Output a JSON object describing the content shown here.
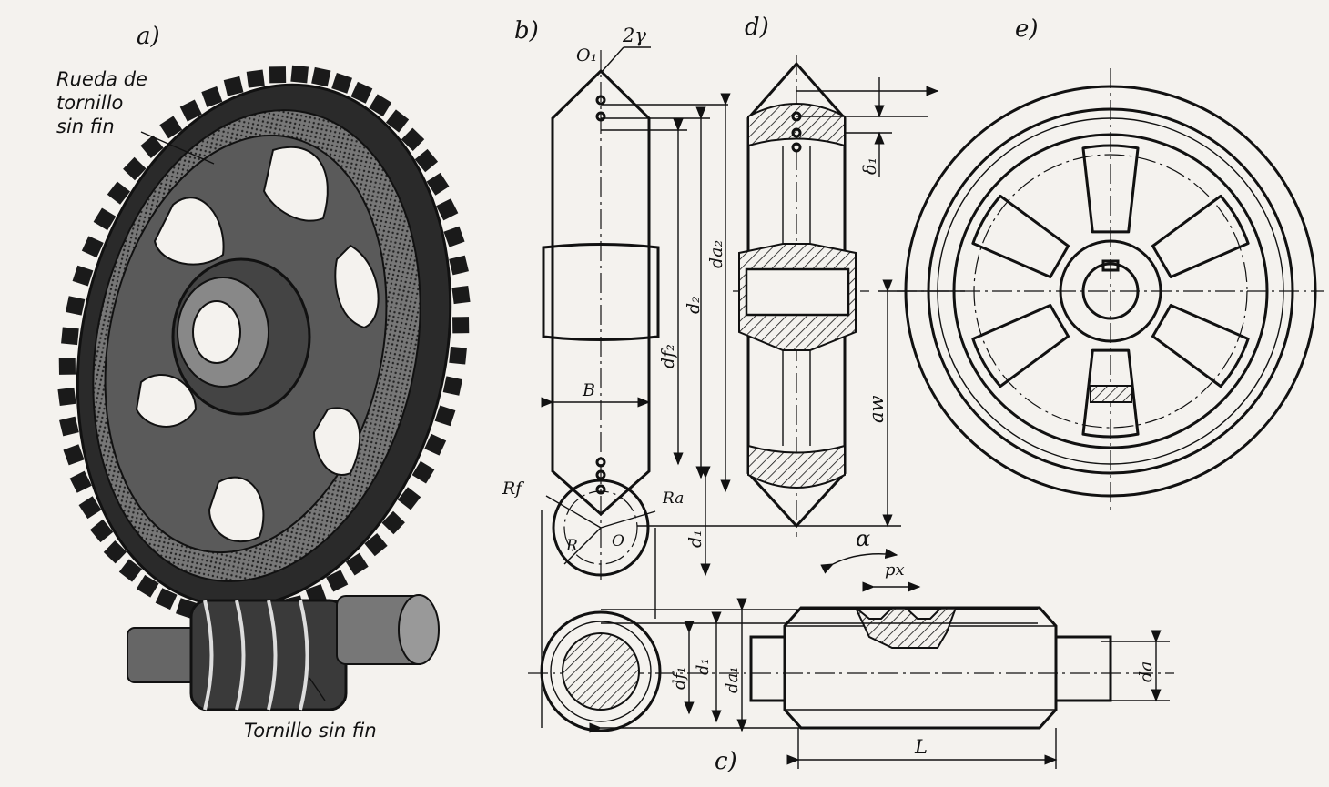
{
  "panels": {
    "a": "a)",
    "b": "b)",
    "c": "c)",
    "d": "d)",
    "e": "e)"
  },
  "captions": {
    "wheel_line1": "Rueda de",
    "wheel_line2": "tornillo",
    "wheel_line3": "sin fin",
    "worm": "Tornillo sin fin"
  },
  "dimensions": {
    "O1": "O₁",
    "two_gamma": "2γ",
    "da2": "da₂",
    "d2": "d₂",
    "df2": "df₂",
    "B": "B",
    "Rf": "Rf",
    "Ra": "Ra",
    "R": "R",
    "O": "O",
    "d1_b": "d₁",
    "delta1": "δ₁",
    "aw": "aw",
    "alpha": "α",
    "px": "px",
    "d1_c": "d₁",
    "df1": "df₁",
    "da1": "da₁",
    "da": "da",
    "L": "L"
  }
}
